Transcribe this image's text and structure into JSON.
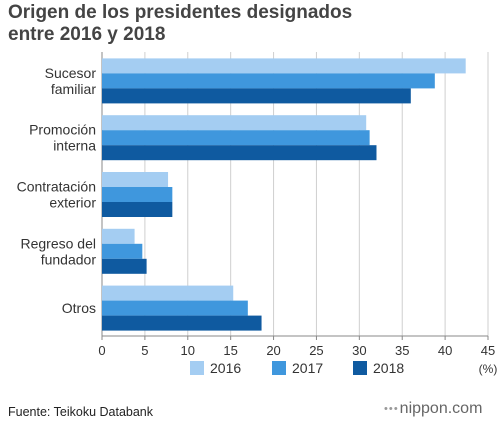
{
  "chart_data": {
    "type": "bar",
    "orientation": "horizontal",
    "title_lines": [
      "Origen de los presidentes designados",
      "entre 2016 y 2018"
    ],
    "categories": [
      [
        "Sucesor",
        "familiar"
      ],
      [
        "Promoción",
        "interna"
      ],
      [
        "Contratación",
        "exterior"
      ],
      [
        "Regreso del",
        "fundador"
      ],
      [
        "Otros"
      ]
    ],
    "series": [
      {
        "name": "2016",
        "color": "#a4cdf2",
        "values": [
          42.4,
          30.8,
          7.7,
          3.8,
          15.3
        ]
      },
      {
        "name": "2017",
        "color": "#3f97dd",
        "values": [
          38.8,
          31.2,
          8.2,
          4.7,
          17.0
        ]
      },
      {
        "name": "2018",
        "color": "#0f5aa0",
        "values": [
          36.0,
          32.0,
          8.2,
          5.2,
          18.6
        ]
      }
    ],
    "xlim": [
      0,
      45
    ],
    "xticks": [
      "0",
      "5",
      "10",
      "15",
      "20",
      "25",
      "30",
      "35",
      "40",
      "45"
    ],
    "unit_label": "(%)",
    "grid": true,
    "legend_position": "bottom"
  },
  "source": "Fuente: Teikoku Databank",
  "logo": "nippon.com",
  "logo_dots": "• • •"
}
